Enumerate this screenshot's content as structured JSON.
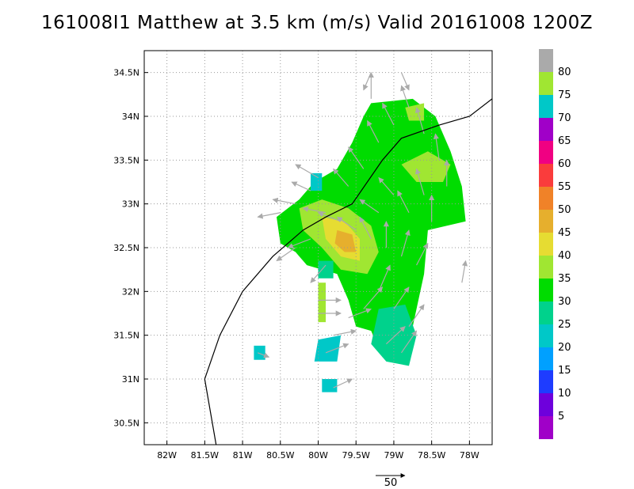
{
  "title": "161008I1 Matthew at 3.5 km (m/s) Valid 20161008 1200Z",
  "map": {
    "lon_range": [
      -82.3,
      -77.7
    ],
    "lat_range": [
      30.25,
      34.75
    ],
    "x_ticks": [
      {
        "lon": -82.0,
        "label": "82W"
      },
      {
        "lon": -81.5,
        "label": "81.5W"
      },
      {
        "lon": -81.0,
        "label": "81W"
      },
      {
        "lon": -80.5,
        "label": "80.5W"
      },
      {
        "lon": -80.0,
        "label": "80W"
      },
      {
        "lon": -79.5,
        "label": "79.5W"
      },
      {
        "lon": -79.0,
        "label": "79W"
      },
      {
        "lon": -78.5,
        "label": "78.5W"
      },
      {
        "lon": -78.0,
        "label": "78W"
      }
    ],
    "y_ticks": [
      {
        "lat": 30.5,
        "label": "30.5N"
      },
      {
        "lat": 31.0,
        "label": "31N"
      },
      {
        "lat": 31.5,
        "label": "31.5N"
      },
      {
        "lat": 32.0,
        "label": "32N"
      },
      {
        "lat": 32.5,
        "label": "32.5N"
      },
      {
        "lat": 33.0,
        "label": "33N"
      },
      {
        "lat": 33.5,
        "label": "33.5N"
      },
      {
        "lat": 34.0,
        "label": "34N"
      },
      {
        "lat": 34.5,
        "label": "34.5N"
      }
    ],
    "grid": "dotted",
    "coastline": [
      [
        -81.35,
        30.25
      ],
      [
        -81.5,
        31.0
      ],
      [
        -81.3,
        31.5
      ],
      [
        -81.0,
        32.0
      ],
      [
        -80.6,
        32.4
      ],
      [
        -80.2,
        32.7
      ],
      [
        -79.9,
        32.85
      ],
      [
        -79.55,
        33.0
      ],
      [
        -79.15,
        33.5
      ],
      [
        -78.9,
        33.75
      ],
      [
        -78.4,
        33.9
      ],
      [
        -78.0,
        34.0
      ],
      [
        -77.7,
        34.2
      ]
    ]
  },
  "colorbar": {
    "levels": [
      {
        "label": "",
        "color": "#a000c8"
      },
      {
        "label": "5",
        "color": "#6e00dc"
      },
      {
        "label": "10",
        "color": "#1e3cff"
      },
      {
        "label": "15",
        "color": "#00a0ff"
      },
      {
        "label": "20",
        "color": "#00c8c8"
      },
      {
        "label": "25",
        "color": "#00d28c"
      },
      {
        "label": "30",
        "color": "#00dc00"
      },
      {
        "label": "35",
        "color": "#a0e632"
      },
      {
        "label": "40",
        "color": "#e6dc32"
      },
      {
        "label": "45",
        "color": "#e6af2d"
      },
      {
        "label": "50",
        "color": "#f08228"
      },
      {
        "label": "55",
        "color": "#fa3c3c"
      },
      {
        "label": "60",
        "color": "#f00082"
      },
      {
        "label": "65",
        "color": "#a000c8"
      },
      {
        "label": "70",
        "color": "#00c8c8"
      },
      {
        "label": "75",
        "color": "#a0e632"
      },
      {
        "label": "80",
        "color": "#aaaaaa"
      }
    ]
  },
  "wind_field": {
    "arrow_color": "#aaaaaa",
    "regions": [
      {
        "level": 6,
        "poly": [
          [
            -79.3,
            34.15
          ],
          [
            -78.75,
            34.2
          ],
          [
            -78.45,
            34.0
          ],
          [
            -78.25,
            33.6
          ],
          [
            -78.1,
            33.2
          ],
          [
            -78.05,
            32.8
          ],
          [
            -78.55,
            32.7
          ],
          [
            -78.6,
            32.2
          ],
          [
            -78.75,
            31.6
          ],
          [
            -78.95,
            31.2
          ],
          [
            -79.15,
            31.25
          ],
          [
            -79.3,
            31.55
          ],
          [
            -79.5,
            31.6
          ],
          [
            -79.6,
            31.9
          ],
          [
            -79.75,
            32.2
          ],
          [
            -80.15,
            32.3
          ],
          [
            -80.3,
            32.45
          ],
          [
            -80.5,
            32.55
          ],
          [
            -80.55,
            32.85
          ],
          [
            -80.25,
            33.05
          ],
          [
            -80.05,
            33.25
          ],
          [
            -79.75,
            33.4
          ],
          [
            -79.55,
            33.7
          ],
          [
            -79.4,
            34.0
          ]
        ]
      },
      {
        "level": 5,
        "poly": [
          [
            -79.2,
            31.8
          ],
          [
            -78.85,
            31.85
          ],
          [
            -78.7,
            31.5
          ],
          [
            -78.8,
            31.15
          ],
          [
            -79.1,
            31.2
          ],
          [
            -79.3,
            31.4
          ]
        ]
      },
      {
        "level": 7,
        "poly": [
          [
            -80.25,
            32.95
          ],
          [
            -79.95,
            33.05
          ],
          [
            -79.6,
            32.95
          ],
          [
            -79.3,
            32.75
          ],
          [
            -79.2,
            32.45
          ],
          [
            -79.35,
            32.2
          ],
          [
            -79.7,
            32.25
          ],
          [
            -79.95,
            32.5
          ],
          [
            -80.2,
            32.7
          ]
        ]
      },
      {
        "level": 8,
        "poly": [
          [
            -79.95,
            32.85
          ],
          [
            -79.65,
            32.8
          ],
          [
            -79.45,
            32.6
          ],
          [
            -79.45,
            32.35
          ],
          [
            -79.7,
            32.4
          ],
          [
            -79.9,
            32.6
          ]
        ]
      },
      {
        "level": 9,
        "poly": [
          [
            -79.75,
            32.7
          ],
          [
            -79.55,
            32.65
          ],
          [
            -79.5,
            32.45
          ],
          [
            -79.65,
            32.45
          ],
          [
            -79.78,
            32.55
          ]
        ]
      },
      {
        "level": 7,
        "poly": [
          [
            -78.9,
            33.45
          ],
          [
            -78.55,
            33.6
          ],
          [
            -78.25,
            33.45
          ],
          [
            -78.35,
            33.25
          ],
          [
            -78.7,
            33.25
          ]
        ]
      },
      {
        "level": 7,
        "poly": [
          [
            -78.85,
            34.1
          ],
          [
            -78.6,
            34.15
          ],
          [
            -78.6,
            33.95
          ],
          [
            -78.8,
            33.95
          ]
        ]
      },
      {
        "level": 4,
        "poly": [
          [
            -80.0,
            31.45
          ],
          [
            -79.7,
            31.5
          ],
          [
            -79.75,
            31.2
          ],
          [
            -80.05,
            31.2
          ]
        ]
      },
      {
        "level": 4,
        "poly": [
          [
            -80.85,
            31.38
          ],
          [
            -80.7,
            31.38
          ],
          [
            -80.7,
            31.22
          ],
          [
            -80.85,
            31.22
          ]
        ]
      },
      {
        "level": 4,
        "poly": [
          [
            -79.95,
            31.0
          ],
          [
            -79.75,
            31.0
          ],
          [
            -79.75,
            30.85
          ],
          [
            -79.95,
            30.85
          ]
        ]
      },
      {
        "level": 7,
        "poly": [
          [
            -80.0,
            32.1
          ],
          [
            -79.9,
            32.1
          ],
          [
            -79.9,
            31.65
          ],
          [
            -80.0,
            31.65
          ]
        ]
      },
      {
        "level": 4,
        "poly": [
          [
            -80.1,
            33.35
          ],
          [
            -79.95,
            33.35
          ],
          [
            -79.95,
            33.15
          ],
          [
            -80.1,
            33.15
          ]
        ]
      },
      {
        "level": 5,
        "poly": [
          [
            -80.0,
            32.35
          ],
          [
            -79.8,
            32.35
          ],
          [
            -79.8,
            32.15
          ],
          [
            -80.0,
            32.15
          ]
        ]
      }
    ],
    "arrows": [
      [
        -80.5,
        32.9,
        -0.3,
        -0.05
      ],
      [
        -80.3,
        33.0,
        -0.3,
        0.05
      ],
      [
        -80.1,
        33.15,
        -0.25,
        0.1
      ],
      [
        -79.9,
        32.9,
        -0.3,
        0.05
      ],
      [
        -79.7,
        32.8,
        -0.3,
        0.1
      ],
      [
        -79.5,
        32.7,
        -0.25,
        0.15
      ],
      [
        -79.3,
        32.6,
        -0.15,
        0.25
      ],
      [
        -79.1,
        32.5,
        0.0,
        0.3
      ],
      [
        -78.9,
        32.4,
        0.1,
        0.3
      ],
      [
        -78.7,
        32.3,
        0.15,
        0.25
      ],
      [
        -79.2,
        32.0,
        0.15,
        0.3
      ],
      [
        -79.4,
        31.8,
        0.25,
        0.25
      ],
      [
        -79.6,
        31.7,
        0.3,
        0.1
      ],
      [
        -79.8,
        31.5,
        0.3,
        0.05
      ],
      [
        -79.0,
        31.8,
        0.2,
        0.25
      ],
      [
        -78.8,
        31.6,
        0.2,
        0.25
      ],
      [
        -78.9,
        31.3,
        0.2,
        0.25
      ],
      [
        -79.1,
        31.4,
        0.25,
        0.2
      ],
      [
        -79.6,
        33.2,
        -0.2,
        0.2
      ],
      [
        -79.4,
        33.4,
        -0.2,
        0.25
      ],
      [
        -79.2,
        33.7,
        -0.15,
        0.25
      ],
      [
        -79.0,
        33.9,
        -0.15,
        0.25
      ],
      [
        -78.8,
        34.1,
        -0.1,
        0.25
      ],
      [
        -79.3,
        34.2,
        0.0,
        0.3
      ],
      [
        -78.6,
        33.8,
        -0.1,
        0.3
      ],
      [
        -78.4,
        33.5,
        -0.05,
        0.3
      ],
      [
        -78.3,
        33.2,
        0.0,
        0.3
      ],
      [
        -78.6,
        33.1,
        -0.1,
        0.3
      ],
      [
        -78.8,
        32.9,
        -0.15,
        0.25
      ],
      [
        -79.0,
        33.1,
        -0.2,
        0.2
      ],
      [
        -79.2,
        32.9,
        -0.25,
        0.15
      ],
      [
        -78.5,
        32.8,
        0.0,
        0.3
      ],
      [
        -80.1,
        32.6,
        -0.3,
        -0.1
      ],
      [
        -79.9,
        32.3,
        -0.2,
        -0.2
      ],
      [
        -80.3,
        32.5,
        -0.25,
        -0.15
      ],
      [
        -80.0,
        31.9,
        0.3,
        0.0
      ],
      [
        -80.0,
        31.75,
        0.3,
        0.0
      ],
      [
        -79.9,
        31.3,
        0.3,
        0.1
      ],
      [
        -80.8,
        31.3,
        0.15,
        -0.05
      ],
      [
        -79.8,
        30.9,
        0.25,
        0.1
      ],
      [
        -78.1,
        32.1,
        0.05,
        0.25
      ],
      [
        -79.3,
        34.5,
        -0.1,
        -0.2
      ],
      [
        -78.9,
        34.5,
        0.1,
        -0.2
      ],
      [
        -80.0,
        33.3,
        -0.3,
        0.15
      ]
    ]
  },
  "vector_key": {
    "label": "50"
  }
}
